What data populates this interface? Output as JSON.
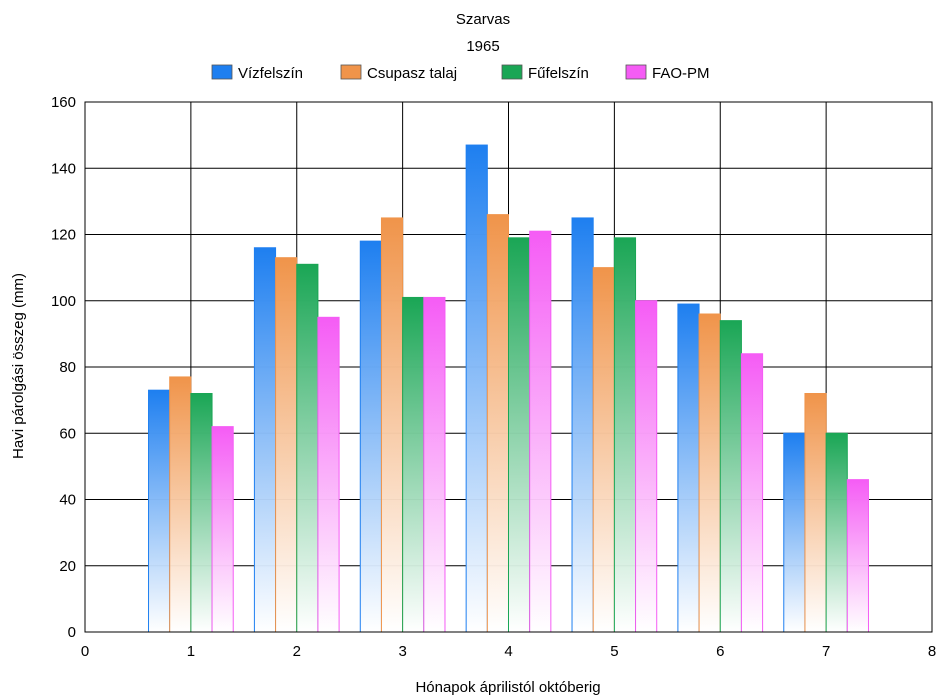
{
  "chart_data": {
    "type": "bar",
    "title": "Szarvas",
    "subtitle": "1965",
    "xlabel": "Hónapok áprilistól októberig",
    "ylabel": "Havi párolgási összeg (mm)",
    "xlim": [
      0,
      8
    ],
    "ylim": [
      0,
      160
    ],
    "xticks": [
      "0",
      "1",
      "2",
      "3",
      "4",
      "5",
      "6",
      "7",
      "8"
    ],
    "yticks": [
      "0",
      "20",
      "40",
      "60",
      "80",
      "100",
      "120",
      "140",
      "160"
    ],
    "grid": true,
    "legend_position": "top",
    "categories": [
      1,
      2,
      3,
      4,
      5,
      6,
      7
    ],
    "series": [
      {
        "name": "Vízfelszín",
        "color": "#1e7ff0",
        "values": [
          73,
          116,
          118,
          147,
          125,
          99,
          60
        ]
      },
      {
        "name": "Csupasz talaj",
        "color": "#f0944a",
        "values": [
          77,
          113,
          125,
          126,
          110,
          96,
          72
        ]
      },
      {
        "name": "Fűfelszín",
        "color": "#1aa655",
        "values": [
          72,
          111,
          101,
          119,
          119,
          94,
          60
        ]
      },
      {
        "name": "FAO-PM",
        "color": "#f55cf5",
        "values": [
          62,
          95,
          101,
          121,
          100,
          84,
          46
        ]
      }
    ]
  }
}
